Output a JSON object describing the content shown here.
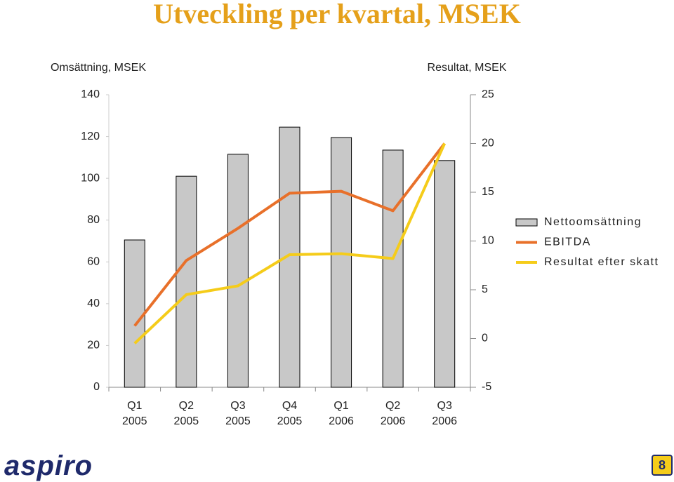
{
  "chart_data": {
    "type": "bar",
    "title": "Utveckling per kvartal, MSEK",
    "y_label": "Omsättning, MSEK",
    "y2_label": "Resultat, MSEK",
    "categories": [
      "Q1 2005",
      "Q2 2005",
      "Q3 2005",
      "Q4 2005",
      "Q1 2006",
      "Q2 2006",
      "Q3 2006"
    ],
    "ylim": [
      0,
      140
    ],
    "yticks": [
      0,
      20,
      40,
      60,
      80,
      100,
      120,
      140
    ],
    "y2lim": [
      -5,
      25
    ],
    "y2ticks": [
      -5,
      0,
      5,
      10,
      15,
      20,
      25
    ],
    "legend": "right",
    "series": [
      {
        "name": "Nettoomsättning",
        "type": "bar",
        "color": "#c8c8c8",
        "values": [
          70.5,
          101,
          111.5,
          124.5,
          119.5,
          113.5,
          108.5
        ]
      },
      {
        "name": "EBITDA",
        "type": "line",
        "axis": "y2",
        "color": "#e8702a",
        "values": [
          1.3,
          8.0,
          11.3,
          14.9,
          15.1,
          13.1,
          20.0
        ]
      },
      {
        "name": "Resultat efter skatt",
        "type": "line",
        "axis": "y2",
        "color": "#f5cc1a",
        "values": [
          -0.5,
          4.5,
          5.4,
          8.6,
          8.7,
          8.2,
          20.0
        ]
      }
    ]
  },
  "footer": {
    "logo": "aspiro",
    "page": "8"
  }
}
